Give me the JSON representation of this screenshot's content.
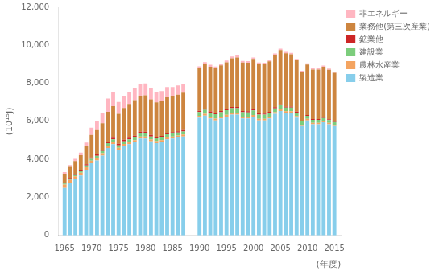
{
  "chart_data": {
    "type": "bar",
    "stacked": true,
    "grid": false,
    "legend": "upper right",
    "x_label": "(年度)",
    "y_label": "(10¹⁵J)",
    "x": [
      1965,
      1966,
      1967,
      1968,
      1969,
      1970,
      1971,
      1972,
      1973,
      1974,
      1975,
      1976,
      1977,
      1978,
      1979,
      1980,
      1981,
      1982,
      1983,
      1984,
      1985,
      1986,
      1987,
      1990,
      1991,
      1992,
      1993,
      1994,
      1995,
      1996,
      1997,
      1998,
      1999,
      2000,
      2001,
      2002,
      2003,
      2004,
      2005,
      2006,
      2007,
      2008,
      2009,
      2010,
      2011,
      2012,
      2013,
      2014,
      2015
    ],
    "xlim": [
      1963.8,
      2016.2
    ],
    "xticks": [
      1965,
      1970,
      1975,
      1980,
      1985,
      1990,
      1995,
      2000,
      2005,
      2010,
      2015
    ],
    "ylim": [
      0,
      12000
    ],
    "yticks": [
      0,
      {
        "value": 2000,
        "label": "2,000"
      },
      {
        "value": 4000,
        "label": "4,000"
      },
      {
        "value": 6000,
        "label": "6,000"
      },
      {
        "value": 8000,
        "label": "8,000"
      },
      {
        "value": 10000,
        "label": "10,000"
      },
      {
        "value": 12000,
        "label": "12,000"
      }
    ],
    "series": [
      {
        "name": "製造業",
        "color": "#87CEEB",
        "values": [
          2500,
          2750,
          2950,
          3150,
          3450,
          3800,
          3950,
          4200,
          4600,
          4800,
          4500,
          4700,
          4800,
          4900,
          5100,
          5100,
          4950,
          4850,
          4900,
          5050,
          5100,
          5150,
          5200,
          6200,
          6300,
          6150,
          6050,
          6150,
          6250,
          6350,
          6350,
          6150,
          6150,
          6250,
          6050,
          6050,
          6150,
          6400,
          6550,
          6450,
          6450,
          6200,
          5750,
          6050,
          5850,
          5850,
          5950,
          5850,
          5750
        ]
      },
      {
        "name": "農林水産業",
        "color": "#F4A460",
        "values": [
          180,
          170,
          160,
          150,
          140,
          135,
          130,
          125,
          130,
          125,
          115,
          115,
          110,
          108,
          108,
          108,
          108,
          108,
          108,
          108,
          105,
          105,
          105,
          95,
          95,
          93,
          92,
          92,
          90,
          90,
          90,
          88,
          88,
          88,
          85,
          85,
          85,
          83,
          83,
          82,
          80,
          80,
          78,
          78,
          75,
          75,
          73,
          72,
          70
        ]
      },
      {
        "name": "建設業",
        "color": "#7CCD7C",
        "values": [
          45,
          55,
          65,
          75,
          88,
          95,
          105,
          115,
          125,
          130,
          125,
          135,
          145,
          155,
          158,
          158,
          148,
          148,
          148,
          158,
          158,
          160,
          165,
          200,
          210,
          220,
          230,
          240,
          250,
          258,
          258,
          248,
          238,
          235,
          225,
          215,
          215,
          205,
          205,
          195,
          195,
          185,
          165,
          162,
          155,
          155,
          155,
          148,
          145
        ]
      },
      {
        "name": "鉱業他",
        "color": "#CD2626",
        "values": [
          45,
          50,
          55,
          60,
          65,
          75,
          75,
          80,
          88,
          88,
          82,
          87,
          87,
          87,
          90,
          88,
          82,
          78,
          78,
          78,
          72,
          68,
          68,
          62,
          62,
          62,
          62,
          62,
          62,
          62,
          62,
          58,
          58,
          58,
          56,
          56,
          56,
          56,
          56,
          52,
          52,
          52,
          48,
          48,
          46,
          46,
          44,
          43,
          42
        ]
      },
      {
        "name": "業務他(第三次産業)",
        "color": "#CD853F",
        "values": [
          480,
          580,
          680,
          780,
          980,
          1180,
          1280,
          1380,
          1560,
          1660,
          1580,
          1670,
          1770,
          1870,
          1870,
          1920,
          1870,
          1820,
          1820,
          1870,
          1870,
          1920,
          1970,
          2250,
          2350,
          2350,
          2350,
          2400,
          2450,
          2550,
          2600,
          2550,
          2550,
          2650,
          2600,
          2600,
          2650,
          2750,
          2850,
          2800,
          2750,
          2700,
          2550,
          2650,
          2600,
          2600,
          2650,
          2600,
          2550
        ]
      },
      {
        "name": "非エネルギー",
        "color": "#FFB6C1",
        "values": [
          80,
          100,
          120,
          140,
          160,
          380,
          480,
          560,
          700,
          720,
          620,
          620,
          620,
          620,
          620,
          620,
          580,
          540,
          540,
          540,
          500,
          490,
          480,
          80,
          100,
          100,
          100,
          100,
          100,
          100,
          100,
          80,
          80,
          80,
          75,
          75,
          75,
          75,
          75,
          70,
          70,
          70,
          68,
          68,
          65,
          65,
          63,
          62,
          60
        ]
      }
    ]
  }
}
